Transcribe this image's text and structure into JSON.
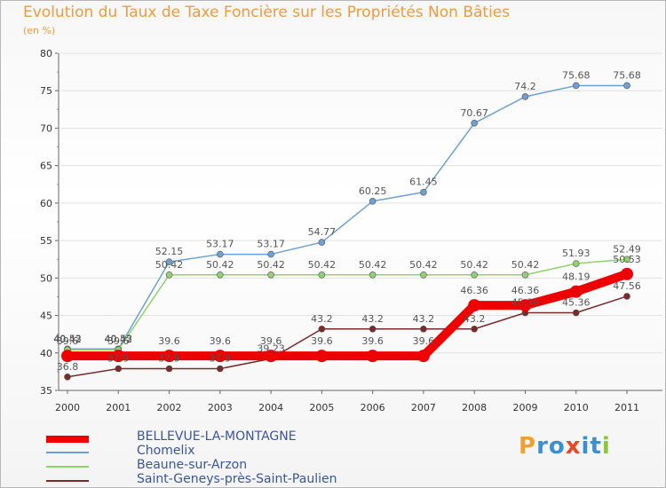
{
  "chart_data": {
    "type": "line",
    "title": "Evolution du Taux de Taxe Foncière sur les Propriétés Non Bâties",
    "unit_label": "(en %)",
    "x": [
      "2000",
      "2001",
      "2002",
      "2003",
      "2004",
      "2005",
      "2006",
      "2007",
      "2008",
      "2009",
      "2010",
      "2011"
    ],
    "ylim": [
      35,
      80
    ],
    "yticks": [
      "35",
      "40",
      "45",
      "50",
      "55",
      "60",
      "65",
      "70",
      "75",
      "80"
    ],
    "series": [
      {
        "name": "BELLEVUE-LA-MONTAGNE",
        "color": "#ee0000",
        "values": [
          39.6,
          39.6,
          39.6,
          39.6,
          39.6,
          39.6,
          39.6,
          39.6,
          46.36,
          46.36,
          48.19,
          50.53
        ],
        "labels": [
          "39.6",
          "39.6",
          "39.6",
          "39.6",
          "39.6",
          "39.6",
          "39.6",
          "39.6",
          "46.36",
          "46.36",
          "48.19",
          "50.53"
        ]
      },
      {
        "name": "Chomelix",
        "color": "#6fa0d0",
        "values": [
          40.53,
          40.53,
          52.15,
          53.17,
          53.17,
          54.77,
          60.25,
          61.45,
          70.67,
          74.2,
          75.68,
          75.68
        ],
        "labels": [
          "40.53",
          "40.53",
          "52.15",
          "53.17",
          "53.17",
          "54.77",
          "60.25",
          "61.45",
          "70.67",
          "74.2",
          "75.68",
          "75.68"
        ]
      },
      {
        "name": "Beaune-sur-Arzon",
        "color": "#8fd46a",
        "values": [
          40.42,
          40.42,
          50.42,
          50.42,
          50.42,
          50.42,
          50.42,
          50.42,
          50.42,
          50.42,
          51.93,
          52.49
        ],
        "labels": [
          "40.42",
          "40.42",
          "50.42",
          "50.42",
          "50.42",
          "50.42",
          "50.42",
          "50.42",
          "50.42",
          "50.42",
          "51.93",
          "52.49"
        ]
      },
      {
        "name": "Saint-Geneys-près-Saint-Paulien",
        "color": "#7a2a2a",
        "values": [
          36.8,
          37.9,
          37.9,
          37.9,
          39.23,
          43.2,
          43.2,
          43.2,
          43.2,
          45.36,
          45.36,
          47.56
        ],
        "labels": [
          "36.8",
          "37.9",
          "37.9",
          "37.9",
          "39.23",
          "43.2",
          "43.2",
          "43.2",
          "43.2",
          "45.36",
          "45.36",
          "47.56"
        ]
      }
    ]
  },
  "legend": {
    "items": [
      "BELLEVUE-LA-MONTAGNE",
      "Chomelix",
      "Beaune-sur-Arzon",
      "Saint-Geneys-près-Saint-Paulien"
    ]
  },
  "logo": {
    "letters": [
      "P",
      "r",
      "o",
      "x",
      "i",
      "t",
      "i"
    ],
    "colors": [
      "#f0a030",
      "#3c8fd0",
      "#3c8fd0",
      "#e8492a",
      "#3c8fd0",
      "#3c8fd0",
      "#8cc63e"
    ]
  }
}
